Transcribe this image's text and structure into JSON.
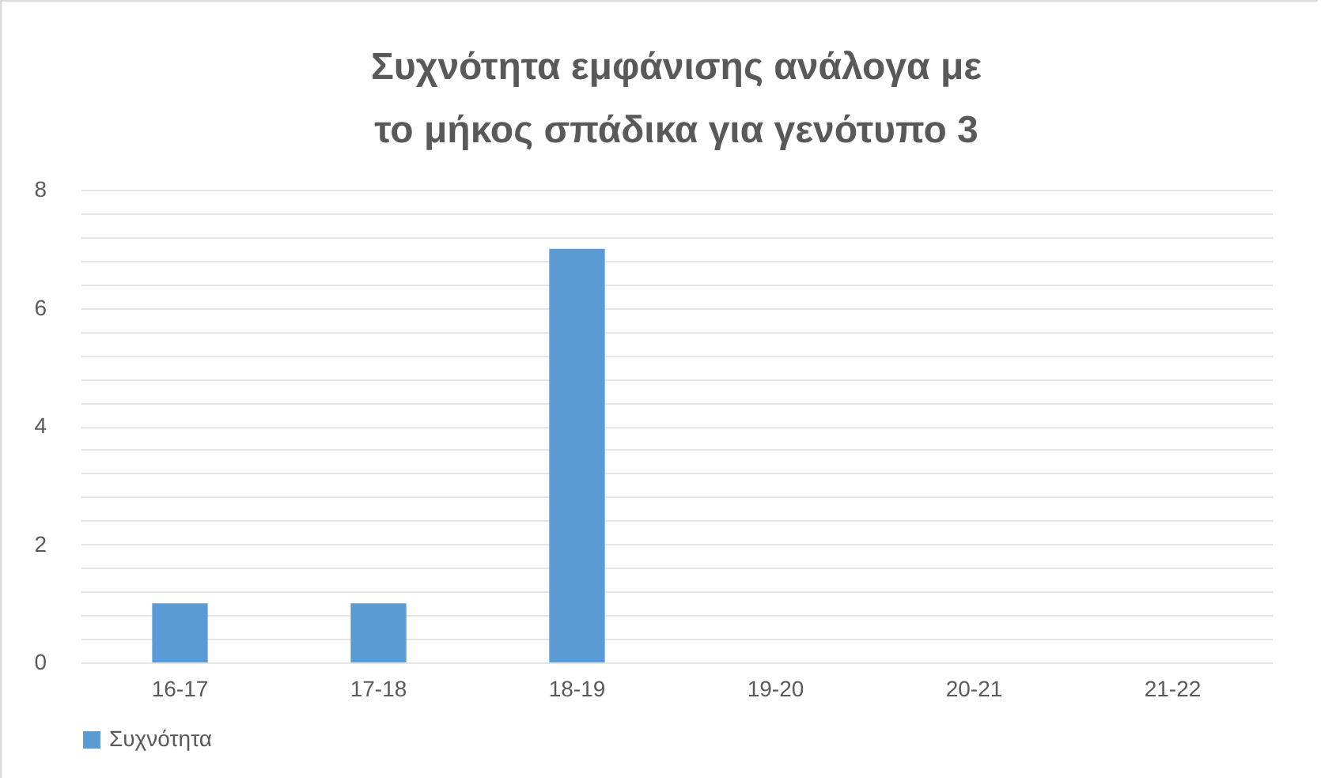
{
  "chart_data": {
    "type": "bar",
    "title": "Συχνότητα εμφάνισης ανάλογα με το μήκος σπάδικα για γενότυπο 3",
    "categories": [
      "16-17",
      "17-18",
      "18-19",
      "19-20",
      "20-21",
      "21-22"
    ],
    "series": [
      {
        "name": "Συχνότητα",
        "color": "#5b9bd5",
        "values": [
          1,
          1,
          7,
          0,
          0,
          0
        ]
      }
    ],
    "ylim": [
      0,
      8
    ],
    "yticks": [
      0,
      {
        "value": 0.4,
        "label": null
      },
      {
        "value": 0.8,
        "label": null
      },
      {
        "value": 1.2,
        "label": null
      },
      {
        "value": 1.6,
        "label": null
      },
      2,
      {
        "value": 2.4,
        "label": null
      },
      {
        "value": 2.8,
        "label": null
      },
      {
        "value": 3.2,
        "label": null
      },
      {
        "value": 3.6,
        "label": null
      },
      4,
      {
        "value": 4.4,
        "label": null
      },
      {
        "value": 4.8,
        "label": null
      },
      {
        "value": 5.2,
        "label": null
      },
      {
        "value": 5.6,
        "label": null
      },
      6,
      {
        "value": 6.4,
        "label": null
      },
      {
        "value": 6.8,
        "label": null
      },
      {
        "value": 7.2,
        "label": null
      },
      {
        "value": 7.6,
        "label": null
      },
      8
    ],
    "grid": "y",
    "legend": "bottom"
  }
}
